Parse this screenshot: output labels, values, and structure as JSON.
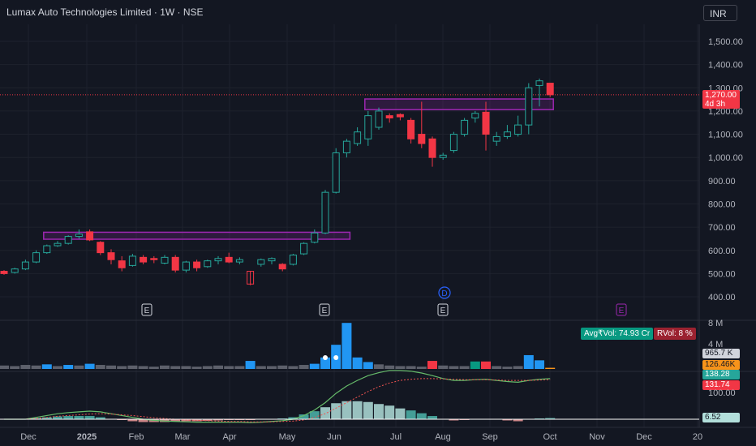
{
  "header": {
    "title": "Lumax Auto Technologies Limited · 1W · NSE",
    "currency_button": "INR"
  },
  "price_axis": {
    "ticks": [
      "1,500.00",
      "1,400.00",
      "1,300.00",
      "1,200.00",
      "1,100.00",
      "1,000.00",
      "900.00",
      "800.00",
      "700.00",
      "600.00",
      "500.00",
      "400.00"
    ],
    "last_price": "1,270.00",
    "countdown": "4d 3h"
  },
  "time_axis": {
    "labels": [
      "Dec",
      "2025",
      "Feb",
      "Mar",
      "Apr",
      "May",
      "Jun",
      "Jul",
      "Aug",
      "Sep",
      "Oct",
      "Nov",
      "Dec",
      "20"
    ]
  },
  "events": {
    "earnings_marker": "E",
    "dividend_marker": "D"
  },
  "volume_pane": {
    "axis_top": "8 M",
    "axis_mid": "4 M",
    "avg_vol": "Avg₹Vol: 74.93 Cr",
    "rvol": "RVol: 8 %",
    "value_a": "965.7 K",
    "value_b": "126.46K"
  },
  "indicator_pane": {
    "axis_label": "100.00",
    "value_green": "138.28",
    "value_red": "131.74",
    "value_hist": "6.52"
  },
  "colors": {
    "up": "#26a69a",
    "down": "#f23645",
    "box": "#9c27b0",
    "background": "#131722",
    "volume_blue": "#2196f3",
    "volume_gray": "#5d606b"
  },
  "chart_data": {
    "type": "candlestick",
    "price_range": [
      400,
      1500
    ],
    "candles": [
      {
        "o": 510,
        "h": 515,
        "l": 495,
        "c": 500
      },
      {
        "o": 505,
        "h": 525,
        "l": 500,
        "c": 520
      },
      {
        "o": 520,
        "h": 560,
        "l": 515,
        "c": 550
      },
      {
        "o": 550,
        "h": 600,
        "l": 545,
        "c": 590
      },
      {
        "o": 590,
        "h": 625,
        "l": 585,
        "c": 620
      },
      {
        "o": 620,
        "h": 640,
        "l": 615,
        "c": 630
      },
      {
        "o": 630,
        "h": 665,
        "l": 625,
        "c": 660
      },
      {
        "o": 660,
        "h": 690,
        "l": 650,
        "c": 670
      },
      {
        "o": 680,
        "h": 690,
        "l": 640,
        "c": 645
      },
      {
        "o": 635,
        "h": 640,
        "l": 580,
        "c": 590
      },
      {
        "o": 590,
        "h": 605,
        "l": 540,
        "c": 560
      },
      {
        "o": 555,
        "h": 575,
        "l": 510,
        "c": 525
      },
      {
        "o": 535,
        "h": 585,
        "l": 530,
        "c": 575
      },
      {
        "o": 570,
        "h": 580,
        "l": 540,
        "c": 550
      },
      {
        "o": 565,
        "h": 575,
        "l": 545,
        "c": 560
      },
      {
        "o": 545,
        "h": 580,
        "l": 540,
        "c": 570
      },
      {
        "o": 570,
        "h": 580,
        "l": 505,
        "c": 515
      },
      {
        "o": 515,
        "h": 555,
        "l": 505,
        "c": 550
      },
      {
        "o": 550,
        "h": 560,
        "l": 510,
        "c": 525
      },
      {
        "o": 530,
        "h": 560,
        "l": 525,
        "c": 555
      },
      {
        "o": 555,
        "h": 575,
        "l": 540,
        "c": 565
      },
      {
        "o": 570,
        "h": 590,
        "l": 545,
        "c": 550
      },
      {
        "o": 550,
        "h": 570,
        "l": 540,
        "c": 560
      },
      {
        "o": 510,
        "h": 510,
        "l": 450,
        "c": 455
      },
      {
        "o": 540,
        "h": 565,
        "l": 530,
        "c": 560
      },
      {
        "o": 555,
        "h": 570,
        "l": 540,
        "c": 565
      },
      {
        "o": 540,
        "h": 545,
        "l": 510,
        "c": 520
      },
      {
        "o": 540,
        "h": 585,
        "l": 535,
        "c": 580
      },
      {
        "o": 585,
        "h": 635,
        "l": 580,
        "c": 630
      },
      {
        "o": 635,
        "h": 690,
        "l": 630,
        "c": 675
      },
      {
        "o": 675,
        "h": 860,
        "l": 670,
        "c": 850
      },
      {
        "o": 850,
        "h": 1040,
        "l": 845,
        "c": 1020
      },
      {
        "o": 1020,
        "h": 1080,
        "l": 1000,
        "c": 1070
      },
      {
        "o": 1060,
        "h": 1130,
        "l": 1050,
        "c": 1110
      },
      {
        "o": 1080,
        "h": 1200,
        "l": 1050,
        "c": 1180
      },
      {
        "o": 1130,
        "h": 1215,
        "l": 1120,
        "c": 1200
      },
      {
        "o": 1180,
        "h": 1190,
        "l": 1150,
        "c": 1170
      },
      {
        "o": 1185,
        "h": 1190,
        "l": 1160,
        "c": 1175
      },
      {
        "o": 1160,
        "h": 1170,
        "l": 1060,
        "c": 1080
      },
      {
        "o": 1100,
        "h": 1240,
        "l": 1040,
        "c": 1060
      },
      {
        "o": 1080,
        "h": 1090,
        "l": 960,
        "c": 1000
      },
      {
        "o": 1000,
        "h": 1020,
        "l": 990,
        "c": 1010
      },
      {
        "o": 1030,
        "h": 1110,
        "l": 1020,
        "c": 1100
      },
      {
        "o": 1100,
        "h": 1170,
        "l": 1090,
        "c": 1160
      },
      {
        "o": 1170,
        "h": 1200,
        "l": 1150,
        "c": 1190
      },
      {
        "o": 1195,
        "h": 1240,
        "l": 1030,
        "c": 1100
      },
      {
        "o": 1070,
        "h": 1110,
        "l": 1050,
        "c": 1090
      },
      {
        "o": 1090,
        "h": 1140,
        "l": 1080,
        "c": 1110
      },
      {
        "o": 1100,
        "h": 1180,
        "l": 1090,
        "c": 1140
      },
      {
        "o": 1140,
        "h": 1320,
        "l": 1100,
        "c": 1300
      },
      {
        "o": 1310,
        "h": 1340,
        "l": 1220,
        "c": 1330
      },
      {
        "o": 1320,
        "h": 1320,
        "l": 1260,
        "c": 1270
      }
    ],
    "zones": [
      {
        "start_index": 4,
        "end_index": 32,
        "top": 678,
        "bottom": 648
      },
      {
        "start_index": 34,
        "end_index": 51,
        "top": 1252,
        "bottom": 1206
      }
    ],
    "volume": [
      0.6,
      0.5,
      0.7,
      0.6,
      0.8,
      0.5,
      0.7,
      0.6,
      0.9,
      0.7,
      0.6,
      0.5,
      0.6,
      0.5,
      0.4,
      0.6,
      0.5,
      0.5,
      0.4,
      0.5,
      0.6,
      0.5,
      0.5,
      1.4,
      0.5,
      0.5,
      0.6,
      0.5,
      0.7,
      0.9,
      2.0,
      4.2,
      8.0,
      2.0,
      1.2,
      0.8,
      0.6,
      0.5,
      0.5,
      0.4,
      1.4,
      0.6,
      0.5,
      0.5,
      1.3,
      1.3,
      0.5,
      0.4,
      0.5,
      2.4,
      1.5,
      0.2
    ],
    "volume_colors": [
      "gray",
      "gray",
      "gray",
      "gray",
      "blue",
      "gray",
      "blue",
      "gray",
      "blue",
      "gray",
      "gray",
      "gray",
      "gray",
      "gray",
      "gray",
      "gray",
      "gray",
      "gray",
      "gray",
      "gray",
      "gray",
      "gray",
      "gray",
      "blue",
      "gray",
      "gray",
      "gray",
      "gray",
      "gray",
      "blue",
      "blue",
      "blue",
      "blue",
      "blue",
      "blue",
      "gray",
      "gray",
      "gray",
      "gray",
      "gray",
      "red",
      "gray",
      "gray",
      "gray",
      "green",
      "red",
      "gray",
      "gray",
      "gray",
      "blue",
      "blue",
      "orange"
    ],
    "indicator_fast": [
      0,
      0,
      0,
      0.05,
      0.1,
      0.15,
      0.18,
      0.2,
      0.22,
      0.2,
      0.15,
      0.1,
      0.05,
      0,
      -0.03,
      -0.05,
      -0.06,
      -0.07,
      -0.08,
      -0.08,
      -0.08,
      -0.08,
      -0.08,
      -0.09,
      -0.08,
      -0.06,
      -0.04,
      0,
      0.1,
      0.25,
      0.45,
      0.7,
      0.9,
      1.05,
      1.18,
      1.26,
      1.32,
      1.32,
      1.3,
      1.25,
      1.18,
      1.1,
      1.05,
      1.05,
      1.07,
      1.08,
      1.05,
      1.02,
      1.0,
      1.05,
      1.08,
      1.1
    ],
    "indicator_slow": [
      0,
      0,
      0,
      0.02,
      0.05,
      0.08,
      0.1,
      0.12,
      0.14,
      0.15,
      0.14,
      0.12,
      0.1,
      0.07,
      0.04,
      0.02,
      0,
      -0.02,
      -0.03,
      -0.04,
      -0.05,
      -0.06,
      -0.06,
      -0.07,
      -0.07,
      -0.07,
      -0.06,
      -0.05,
      -0.02,
      0.05,
      0.15,
      0.3,
      0.45,
      0.6,
      0.75,
      0.88,
      0.98,
      1.05,
      1.08,
      1.1,
      1.1,
      1.09,
      1.08,
      1.07,
      1.07,
      1.07,
      1.06,
      1.05,
      1.05,
      1.05,
      1.06,
      1.07
    ],
    "indicator_hist": [
      0,
      0,
      0,
      0.03,
      0.05,
      0.07,
      0.08,
      0.08,
      0.08,
      0.05,
      0.01,
      -0.02,
      -0.05,
      -0.07,
      -0.07,
      -0.07,
      -0.06,
      -0.05,
      -0.05,
      -0.04,
      -0.03,
      -0.02,
      -0.02,
      -0.02,
      -0.01,
      0.01,
      0.02,
      0.05,
      0.12,
      0.2,
      0.3,
      0.4,
      0.45,
      0.45,
      0.43,
      0.38,
      0.34,
      0.27,
      0.22,
      0.15,
      0.08,
      0.01,
      -0.03,
      -0.02,
      0,
      0.01,
      -0.01,
      -0.03,
      -0.05,
      0,
      0.02,
      0.03
    ]
  }
}
